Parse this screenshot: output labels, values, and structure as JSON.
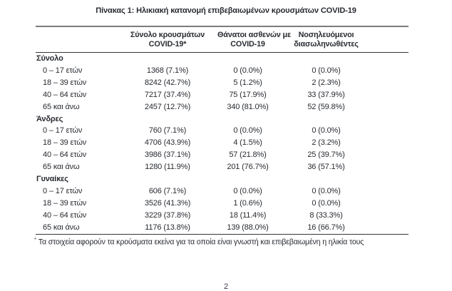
{
  "title": "Πίνακας 1: Ηλικιακή κατανομή επιβεβαιωμένων κρουσμάτων COVID-19",
  "table": {
    "headers": [
      {
        "line1": "Σύνολο κρουσμάτων",
        "line2": "COVID-19*"
      },
      {
        "line1": "Θάνατοι ασθενών με",
        "line2": "COVID-19"
      },
      {
        "line1": "Νοσηλευόμενοι",
        "line2": "διασωληνωθέντες"
      }
    ],
    "sections": [
      {
        "label": "Σύνολο",
        "rows": [
          {
            "label": "0 – 17 ετών",
            "cases": "1368 (7.1%)",
            "deaths": "0 (0.0%)",
            "intubated": "0 (0.0%)"
          },
          {
            "label": "18 – 39 ετών",
            "cases": "8242 (42.7%)",
            "deaths": "5 (1.2%)",
            "intubated": "2 (2.3%)"
          },
          {
            "label": "40 – 64 ετών",
            "cases": "7217 (37.4%)",
            "deaths": "75 (17.9%)",
            "intubated": "33 (37.9%)"
          },
          {
            "label": "65 και άνω",
            "cases": "2457 (12.7%)",
            "deaths": "340 (81.0%)",
            "intubated": "52 (59.8%)"
          }
        ]
      },
      {
        "label": "Άνδρες",
        "rows": [
          {
            "label": "0 – 17 ετών",
            "cases": "760 (7.1%)",
            "deaths": "0 (0.0%)",
            "intubated": "0 (0.0%)"
          },
          {
            "label": "18 – 39 ετών",
            "cases": "4706 (43.9%)",
            "deaths": "4 (1.5%)",
            "intubated": "2 (3.2%)"
          },
          {
            "label": "40 – 64 ετών",
            "cases": "3986 (37.1%)",
            "deaths": "57 (21.8%)",
            "intubated": "25 (39.7%)"
          },
          {
            "label": "65 και άνω",
            "cases": "1280 (11.9%)",
            "deaths": "201 (76.7%)",
            "intubated": "36 (57.1%)"
          }
        ]
      },
      {
        "label": "Γυναίκες",
        "rows": [
          {
            "label": "0 – 17 ετών",
            "cases": "606 (7.1%)",
            "deaths": "0 (0.0%)",
            "intubated": "0 (0.0%)"
          },
          {
            "label": "18 – 39 ετών",
            "cases": "3526 (41.3%)",
            "deaths": "1 (0.6%)",
            "intubated": "0 (0.0%)"
          },
          {
            "label": "40 – 64 ετών",
            "cases": "3229 (37.8%)",
            "deaths": "18 (11.4%)",
            "intubated": "8 (33.3%)"
          },
          {
            "label": "65 και άνω",
            "cases": "1176 (13.8%)",
            "deaths": "139 (88.0%)",
            "intubated": "16 (66.7%)"
          }
        ]
      }
    ]
  },
  "footnote": {
    "marker": "*",
    "text": "Τα στοιχεία αφορούν τα κρούσματα εκείνα για τα οποία είναι γνωστή και επιβεβαιωμένη η ηλικία τους"
  },
  "page_number": "2",
  "colors": {
    "text": "#282b31",
    "top_rule": "#7c7c7c",
    "dark_rule": "#33363b",
    "background": "#ffffff"
  }
}
